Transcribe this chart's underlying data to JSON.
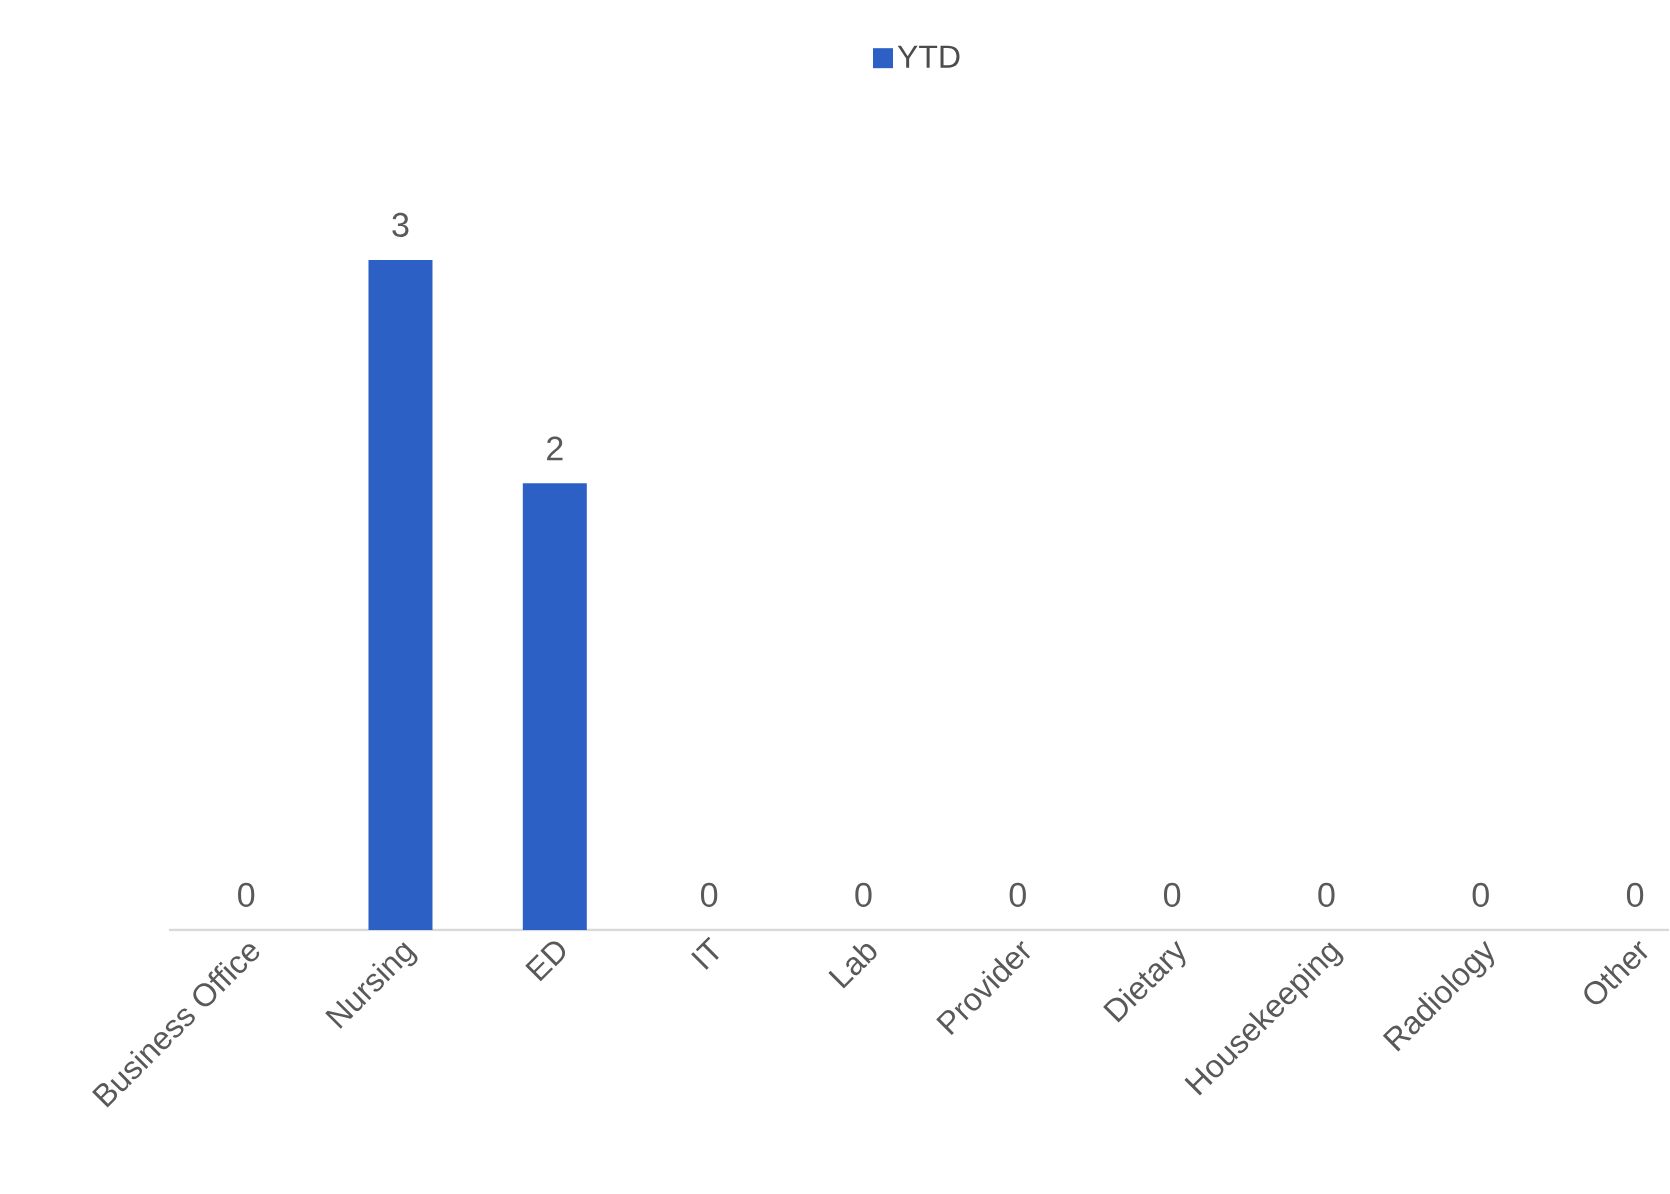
{
  "chart_data": {
    "type": "bar",
    "categories": [
      "Business Office",
      "Nursing",
      "ED",
      "IT",
      "Lab",
      "Provider",
      "Dietary",
      "Housekeeping",
      "Radiology",
      "Other"
    ],
    "series": [
      {
        "name": "YTD",
        "color": "#2c60c4",
        "values": [
          0,
          3,
          2,
          0,
          0,
          0,
          0,
          0,
          0,
          0
        ]
      }
    ],
    "data_labels": true,
    "legend": "top"
  }
}
